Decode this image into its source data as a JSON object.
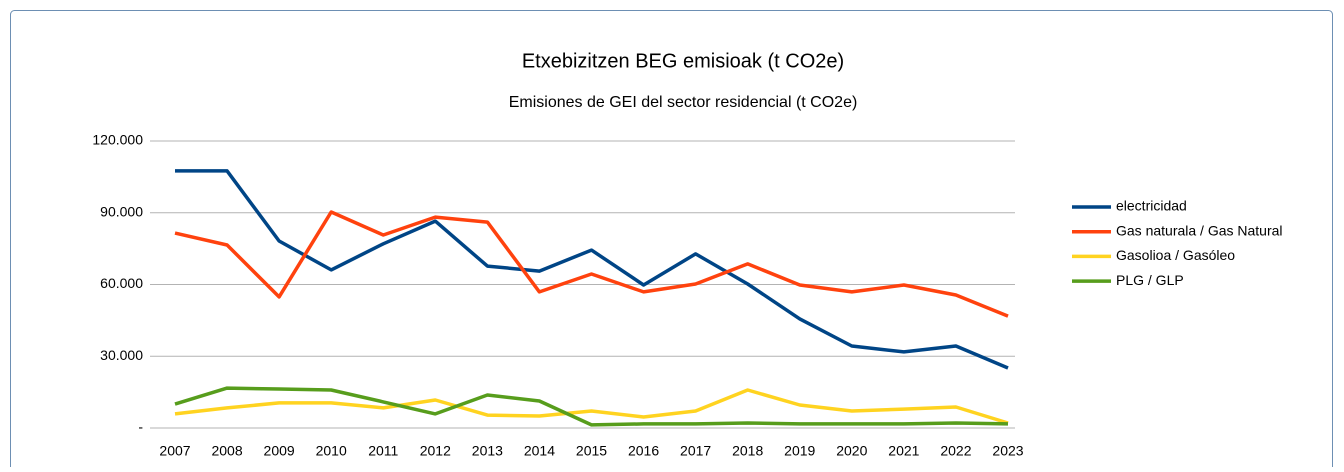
{
  "chart_data": {
    "type": "line",
    "title": "Etxebizitzen BEG emisioak (t CO2e)",
    "subtitle": "Emisiones de GEI del sector residencial (t CO2e)",
    "categories": [
      "2007",
      "2008",
      "2009",
      "2010",
      "2011",
      "2012",
      "2013",
      "2014",
      "2015",
      "2016",
      "2017",
      "2018",
      "2019",
      "2020",
      "2021",
      "2022",
      "2023"
    ],
    "series": [
      {
        "name": "electricidad",
        "color": "#004586",
        "values": [
          107500,
          107500,
          78200,
          66100,
          77000,
          86500,
          67700,
          65600,
          74400,
          59800,
          72800,
          60200,
          45600,
          34300,
          31800,
          34300,
          25100
        ]
      },
      {
        "name": "Gas naturala / Gas Natural",
        "color": "#ff420e",
        "values": [
          81500,
          76500,
          54800,
          90300,
          80700,
          88200,
          86100,
          56900,
          64400,
          56900,
          60200,
          68600,
          59800,
          56900,
          59800,
          55600,
          46800
        ]
      },
      {
        "name": "Gasolioa / Gasóleo",
        "color": "#ffd320",
        "values": [
          5900,
          8400,
          10500,
          10500,
          8400,
          11700,
          5400,
          5000,
          7100,
          4600,
          7100,
          15900,
          9600,
          7100,
          7900,
          8800,
          2100
        ]
      },
      {
        "name": "PLG / GLP",
        "color": "#579d1c",
        "values": [
          10000,
          16700,
          16300,
          15900,
          10900,
          5900,
          13800,
          11300,
          1300,
          1700,
          1700,
          2100,
          1700,
          1700,
          1700,
          2100,
          1700
        ]
      }
    ],
    "ylim": [
      0,
      120000
    ],
    "yticks": [
      {
        "value": 0,
        "label": "-"
      },
      {
        "value": 30000,
        "label": "30.000"
      },
      {
        "value": 60000,
        "label": "60.000"
      },
      {
        "value": 90000,
        "label": "90.000"
      },
      {
        "value": 120000,
        "label": "120.000"
      }
    ],
    "grid": true,
    "legend": "right"
  }
}
